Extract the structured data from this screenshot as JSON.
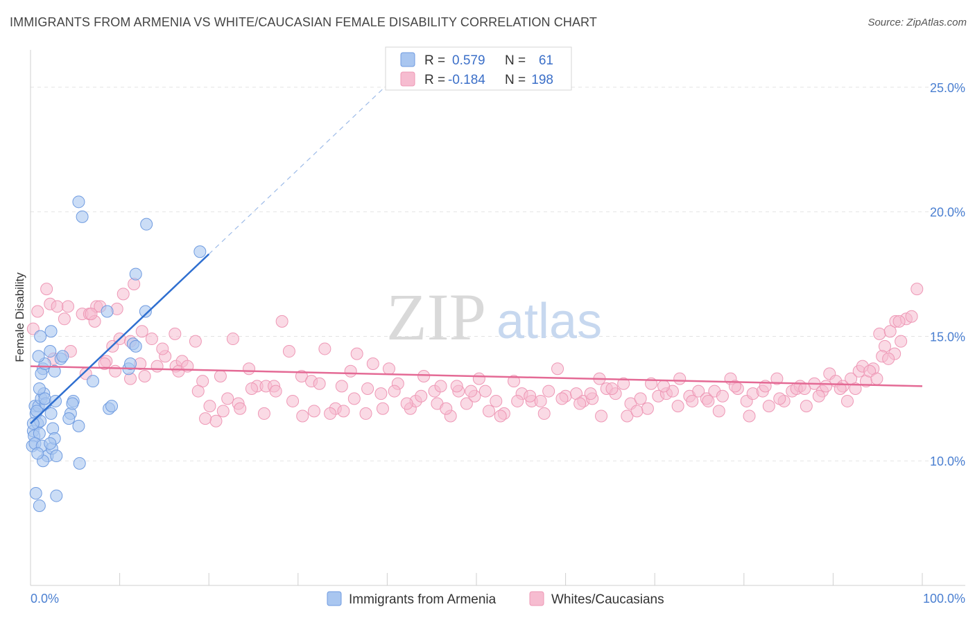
{
  "header": {
    "title": "IMMIGRANTS FROM ARMENIA VS WHITE/CAUCASIAN FEMALE DISABILITY CORRELATION CHART",
    "source": "Source: ZipAtlas.com"
  },
  "watermark": {
    "zip": "ZIP",
    "atlas": "atlas"
  },
  "colors": {
    "blue_fill": "#a9c6f0",
    "blue_stroke": "#6f9be0",
    "blue_line": "#2f6fd0",
    "pink_fill": "#f6bcd0",
    "pink_stroke": "#ee97b5",
    "pink_line": "#e46a95",
    "tick_text": "#4a7fd1",
    "grid": "#e3e3e3"
  },
  "legend": {
    "r_label": "R =",
    "n_label": "N =",
    "rows": [
      {
        "name": "blue",
        "r": "0.579",
        "n": "61"
      },
      {
        "name": "pink",
        "r": "-0.184",
        "n": "198"
      }
    ]
  },
  "chart_data": {
    "type": "scatter",
    "title": "IMMIGRANTS FROM ARMENIA VS WHITE/CAUCASIAN FEMALE DISABILITY CORRELATION CHART",
    "xlabel": "",
    "ylabel": "Female Disability",
    "xlim": [
      0,
      100
    ],
    "ylim": [
      5,
      26.5
    ],
    "x_tick_labels": [
      "0.0%",
      "100.0%"
    ],
    "y_ticks": [
      10,
      15,
      20,
      25
    ],
    "y_tick_labels": [
      "10.0%",
      "15.0%",
      "20.0%",
      "25.0%"
    ],
    "grid": true,
    "series": [
      {
        "name": "Immigrants from Armenia",
        "color": "#a9c6f0",
        "r": 0.579,
        "n": 61,
        "trend": {
          "x": [
            0.0,
            20.0
          ],
          "y": [
            11.5,
            18.3
          ]
        },
        "trend_extension": {
          "x": [
            20.0,
            40.0
          ],
          "y": [
            18.3,
            25.1
          ]
        },
        "points": [
          [
            0.3,
            11.2
          ],
          [
            0.5,
            12.2
          ],
          [
            0.6,
            11.9
          ],
          [
            0.4,
            11.0
          ],
          [
            0.2,
            10.6
          ],
          [
            0.8,
            11.5
          ],
          [
            0.9,
            12.2
          ],
          [
            1.2,
            12.5
          ],
          [
            0.7,
            12.0
          ],
          [
            1.1,
            11.6
          ],
          [
            1.0,
            11.1
          ],
          [
            0.5,
            10.7
          ],
          [
            1.3,
            10.6
          ],
          [
            1.5,
            12.7
          ],
          [
            1.7,
            12.3
          ],
          [
            1.4,
            13.7
          ],
          [
            1.2,
            13.5
          ],
          [
            1.6,
            13.9
          ],
          [
            2.2,
            14.4
          ],
          [
            0.9,
            14.2
          ],
          [
            1.1,
            15.0
          ],
          [
            2.3,
            15.2
          ],
          [
            1.9,
            10.2
          ],
          [
            1.4,
            10.0
          ],
          [
            2.4,
            10.5
          ],
          [
            2.5,
            11.3
          ],
          [
            2.7,
            10.9
          ],
          [
            2.2,
            10.7
          ],
          [
            2.9,
            10.2
          ],
          [
            0.6,
            8.7
          ],
          [
            1.0,
            8.2
          ],
          [
            2.9,
            8.6
          ],
          [
            1.0,
            12.9
          ],
          [
            1.6,
            12.5
          ],
          [
            2.3,
            11.9
          ],
          [
            2.7,
            13.6
          ],
          [
            2.8,
            12.4
          ],
          [
            3.4,
            14.1
          ],
          [
            4.5,
            11.9
          ],
          [
            4.3,
            11.7
          ],
          [
            4.8,
            12.4
          ],
          [
            4.7,
            12.3
          ],
          [
            5.4,
            11.4
          ],
          [
            5.5,
            9.9
          ],
          [
            7.0,
            13.2
          ],
          [
            8.8,
            12.1
          ],
          [
            9.1,
            12.2
          ],
          [
            11.0,
            13.7
          ],
          [
            11.2,
            13.9
          ],
          [
            11.5,
            14.7
          ],
          [
            11.8,
            14.6
          ],
          [
            12.9,
            16.0
          ],
          [
            11.8,
            17.5
          ],
          [
            8.6,
            16.0
          ],
          [
            13.0,
            19.5
          ],
          [
            5.4,
            20.4
          ],
          [
            5.8,
            19.8
          ],
          [
            19.0,
            18.4
          ],
          [
            0.3,
            11.5
          ],
          [
            3.6,
            14.2
          ],
          [
            0.8,
            10.3
          ]
        ]
      },
      {
        "name": "Whites/Caucasians",
        "color": "#f6bcd0",
        "r": -0.184,
        "n": 198,
        "trend": {
          "x": [
            0.0,
            100.0
          ],
          "y": [
            13.8,
            13.0
          ]
        },
        "points": [
          [
            0.3,
            15.3
          ],
          [
            0.8,
            16.0
          ],
          [
            1.8,
            16.9
          ],
          [
            2.2,
            16.3
          ],
          [
            3.0,
            16.2
          ],
          [
            3.8,
            15.7
          ],
          [
            4.2,
            16.2
          ],
          [
            5.8,
            15.9
          ],
          [
            6.6,
            15.9
          ],
          [
            7.2,
            15.6
          ],
          [
            7.4,
            16.2
          ],
          [
            7.8,
            16.2
          ],
          [
            9.7,
            16.1
          ],
          [
            10.4,
            16.7
          ],
          [
            11.6,
            17.1
          ],
          [
            8.5,
            14.0
          ],
          [
            9.2,
            14.6
          ],
          [
            10.0,
            14.9
          ],
          [
            11.2,
            14.8
          ],
          [
            12.5,
            15.2
          ],
          [
            13.6,
            14.9
          ],
          [
            4.5,
            14.4
          ],
          [
            6.2,
            13.5
          ],
          [
            8.3,
            13.9
          ],
          [
            11.2,
            13.3
          ],
          [
            12.3,
            13.9
          ],
          [
            14.2,
            13.8
          ],
          [
            15.1,
            14.2
          ],
          [
            16.3,
            13.8
          ],
          [
            17.0,
            14.0
          ],
          [
            18.5,
            14.8
          ],
          [
            19.3,
            13.2
          ],
          [
            20.1,
            12.2
          ],
          [
            21.6,
            12.0
          ],
          [
            22.7,
            14.9
          ],
          [
            23.3,
            12.3
          ],
          [
            24.5,
            13.7
          ],
          [
            25.4,
            13.0
          ],
          [
            26.4,
            13.0
          ],
          [
            27.3,
            13.0
          ],
          [
            28.2,
            15.6
          ],
          [
            29.4,
            12.4
          ],
          [
            30.4,
            13.4
          ],
          [
            31.5,
            13.2
          ],
          [
            32.4,
            13.1
          ],
          [
            33.0,
            14.5
          ],
          [
            34.2,
            12.1
          ],
          [
            35.1,
            12.0
          ],
          [
            35.9,
            13.6
          ],
          [
            36.6,
            14.3
          ],
          [
            37.8,
            12.9
          ],
          [
            38.4,
            13.9
          ],
          [
            39.3,
            12.7
          ],
          [
            40.2,
            13.7
          ],
          [
            41.2,
            13.1
          ],
          [
            42.6,
            12.1
          ],
          [
            43.2,
            12.4
          ],
          [
            44.1,
            13.4
          ],
          [
            45.3,
            12.8
          ],
          [
            46.0,
            13.0
          ],
          [
            47.1,
            11.8
          ],
          [
            48.0,
            12.8
          ],
          [
            48.9,
            12.3
          ],
          [
            49.8,
            12.6
          ],
          [
            50.3,
            13.3
          ],
          [
            51.4,
            12.0
          ],
          [
            52.2,
            12.4
          ],
          [
            53.1,
            11.9
          ],
          [
            54.2,
            13.2
          ],
          [
            55.1,
            12.7
          ],
          [
            56.2,
            12.4
          ],
          [
            57.2,
            12.4
          ],
          [
            58.1,
            12.8
          ],
          [
            59.1,
            13.7
          ],
          [
            60.0,
            12.6
          ],
          [
            61.2,
            12.7
          ],
          [
            62.0,
            12.4
          ],
          [
            63.0,
            12.5
          ],
          [
            63.8,
            13.3
          ],
          [
            64.6,
            12.9
          ],
          [
            65.6,
            12.7
          ],
          [
            66.5,
            13.1
          ],
          [
            67.3,
            12.3
          ],
          [
            68.4,
            12.5
          ],
          [
            69.2,
            12.1
          ],
          [
            70.4,
            12.6
          ],
          [
            71.3,
            12.7
          ],
          [
            72.0,
            12.8
          ],
          [
            72.8,
            13.3
          ],
          [
            73.9,
            12.6
          ],
          [
            74.9,
            12.8
          ],
          [
            75.8,
            12.5
          ],
          [
            76.7,
            12.8
          ],
          [
            77.6,
            12.6
          ],
          [
            78.5,
            13.3
          ],
          [
            79.3,
            12.9
          ],
          [
            80.3,
            12.4
          ],
          [
            81.0,
            12.7
          ],
          [
            82.1,
            12.8
          ],
          [
            82.8,
            12.2
          ],
          [
            83.7,
            13.3
          ],
          [
            84.5,
            12.4
          ],
          [
            85.4,
            12.8
          ],
          [
            86.3,
            13.0
          ],
          [
            87.0,
            12.2
          ],
          [
            87.9,
            13.1
          ],
          [
            88.8,
            12.8
          ],
          [
            89.6,
            13.5
          ],
          [
            90.3,
            13.2
          ],
          [
            91.1,
            13.0
          ],
          [
            92.0,
            13.3
          ],
          [
            92.9,
            13.6
          ],
          [
            93.7,
            13.2
          ],
          [
            94.5,
            13.7
          ],
          [
            95.2,
            15.1
          ],
          [
            95.8,
            14.6
          ],
          [
            96.4,
            15.2
          ],
          [
            97.0,
            15.6
          ],
          [
            97.6,
            14.8
          ],
          [
            98.2,
            15.7
          ],
          [
            98.8,
            15.8
          ],
          [
            99.4,
            16.9
          ],
          [
            97.4,
            15.6
          ],
          [
            96.9,
            14.3
          ],
          [
            23.5,
            12.1
          ],
          [
            24.8,
            12.9
          ],
          [
            26.2,
            11.9
          ],
          [
            27.5,
            12.8
          ],
          [
            29.0,
            14.4
          ],
          [
            30.5,
            11.8
          ],
          [
            31.8,
            12.0
          ],
          [
            33.6,
            11.9
          ],
          [
            34.9,
            13.0
          ],
          [
            36.3,
            12.5
          ],
          [
            37.6,
            11.9
          ],
          [
            39.5,
            12.1
          ],
          [
            40.8,
            12.8
          ],
          [
            42.2,
            12.3
          ],
          [
            43.8,
            12.6
          ],
          [
            45.6,
            12.3
          ],
          [
            46.6,
            12.1
          ],
          [
            47.8,
            13.0
          ],
          [
            49.4,
            12.8
          ],
          [
            51.0,
            12.8
          ],
          [
            52.7,
            11.8
          ],
          [
            54.6,
            12.4
          ],
          [
            56.0,
            12.6
          ],
          [
            57.6,
            11.9
          ],
          [
            59.6,
            12.5
          ],
          [
            61.6,
            12.3
          ],
          [
            62.8,
            12.7
          ],
          [
            64.0,
            11.8
          ],
          [
            65.2,
            12.9
          ],
          [
            66.9,
            11.8
          ],
          [
            68.0,
            12.0
          ],
          [
            69.6,
            13.1
          ],
          [
            71.0,
            13.0
          ],
          [
            72.6,
            12.2
          ],
          [
            74.2,
            12.4
          ],
          [
            76.0,
            12.4
          ],
          [
            77.2,
            12.0
          ],
          [
            79.0,
            13.0
          ],
          [
            80.6,
            11.8
          ],
          [
            82.4,
            13.0
          ],
          [
            84.0,
            12.5
          ],
          [
            85.9,
            12.9
          ],
          [
            86.8,
            12.9
          ],
          [
            88.4,
            12.6
          ],
          [
            89.2,
            13.0
          ],
          [
            90.8,
            12.9
          ],
          [
            91.6,
            12.4
          ],
          [
            92.5,
            12.9
          ],
          [
            93.3,
            13.8
          ],
          [
            94.1,
            13.6
          ],
          [
            94.9,
            13.3
          ],
          [
            95.5,
            14.2
          ],
          [
            96.2,
            14.1
          ],
          [
            6.8,
            15.9
          ],
          [
            2.6,
            14.1
          ],
          [
            14.8,
            14.5
          ],
          [
            16.6,
            13.6
          ],
          [
            18.8,
            12.8
          ],
          [
            20.8,
            11.6
          ],
          [
            21.3,
            13.4
          ],
          [
            9.5,
            13.6
          ],
          [
            12.8,
            13.4
          ],
          [
            16.2,
            15.1
          ],
          [
            17.6,
            13.8
          ],
          [
            19.6,
            11.7
          ],
          [
            22.1,
            12.5
          ]
        ]
      }
    ]
  },
  "bottom_legend": {
    "items": [
      {
        "label": "Immigrants from Armenia"
      },
      {
        "label": "Whites/Caucasians"
      }
    ]
  }
}
